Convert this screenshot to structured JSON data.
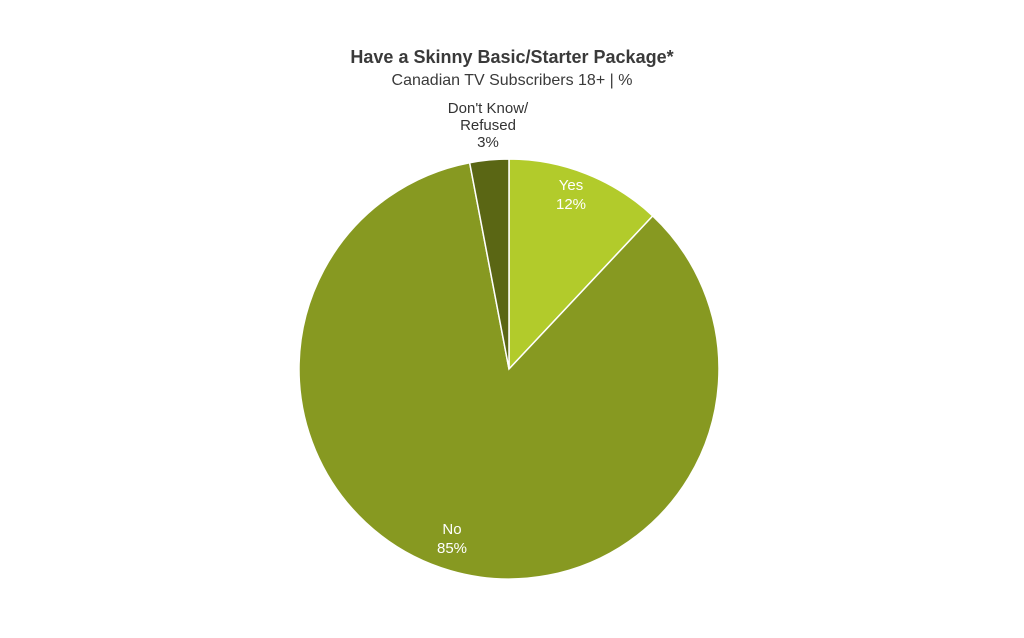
{
  "chart_data": {
    "type": "pie",
    "title": "Have a Skinny Basic/Starter Package*",
    "subtitle": "Canadian TV Subscribers 18+ | %",
    "slices": [
      {
        "name": "Yes",
        "value": 12,
        "label": "12%",
        "color": "#b2cb2b",
        "label_color": "#ffffff"
      },
      {
        "name": "No",
        "value": 85,
        "label": "85%",
        "color": "#879921",
        "label_color": "#ffffff"
      },
      {
        "name": "Don't Know/ Refused",
        "name_lines": [
          "Don't Know/",
          "Refused"
        ],
        "value": 3,
        "label": "3%",
        "color": "#5a6614",
        "label_color": "#333333"
      }
    ],
    "start": "12 o'clock",
    "direction": "clockwise"
  }
}
